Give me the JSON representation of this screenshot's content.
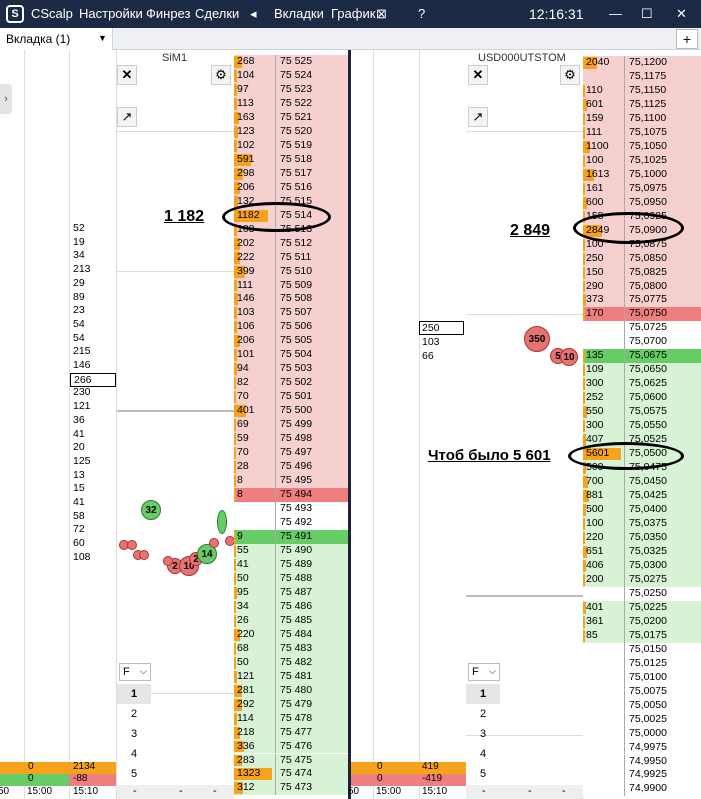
{
  "titlebar": {
    "app_name": "CScalp",
    "menu": [
      "Настройки",
      "Финрез",
      "Сделки"
    ],
    "arrow": "◂",
    "menu2": [
      "Вкладки",
      "График"
    ],
    "close_small": "⊠",
    "help": "?",
    "clock": "12:16:31",
    "minimize": "—",
    "maximize": "☐",
    "close": "✕"
  },
  "tabs": {
    "active_label": "Вкладка (1)",
    "dropdown_arrow": "▼",
    "add_label": "+"
  },
  "left_strip": {
    "collapse_arrow": "›"
  },
  "left_column": {
    "values": [
      "52",
      "19",
      "34",
      "213",
      "29",
      "89",
      "23",
      "54",
      "54",
      "215",
      "146",
      "266",
      "230",
      "121",
      "36",
      "41",
      "20",
      "125",
      "13",
      "15",
      "41",
      "58",
      "72",
      "60",
      "108"
    ],
    "boxed_value": "266",
    "bottom": {
      "orange_left": "0",
      "orange_right": "2134",
      "green_left": "0",
      "green_right": "-88",
      "time_a": "15:00",
      "time_b": "15:10",
      "time_0": "50"
    }
  },
  "sim": {
    "title": "SiM1",
    "annotation": "1 182",
    "asks": [
      [
        "268",
        "75 525"
      ],
      [
        "104",
        "75 524"
      ],
      [
        "97",
        "75 523"
      ],
      [
        "113",
        "75 522"
      ],
      [
        "163",
        "75 521"
      ],
      [
        "123",
        "75 520"
      ],
      [
        "102",
        "75 519"
      ],
      [
        "591",
        "75 518"
      ],
      [
        "298",
        "75 517"
      ],
      [
        "206",
        "75 516"
      ],
      [
        "132",
        "75 515"
      ],
      [
        "1182",
        "75 514"
      ],
      [
        "108",
        "75 513"
      ],
      [
        "202",
        "75 512"
      ],
      [
        "222",
        "75 511"
      ],
      [
        "399",
        "75 510"
      ],
      [
        "111",
        "75 509"
      ],
      [
        "146",
        "75 508"
      ],
      [
        "103",
        "75 507"
      ],
      [
        "106",
        "75 506"
      ],
      [
        "206",
        "75 505"
      ],
      [
        "101",
        "75 504"
      ],
      [
        "94",
        "75 503"
      ],
      [
        "82",
        "75 502"
      ],
      [
        "70",
        "75 501"
      ],
      [
        "401",
        "75 500"
      ],
      [
        "69",
        "75 499"
      ],
      [
        "59",
        "75 498"
      ],
      [
        "70",
        "75 497"
      ],
      [
        "28",
        "75 496"
      ],
      [
        "8",
        "75 495"
      ],
      [
        "8",
        "75 494"
      ]
    ],
    "mid": [
      [
        "",
        "75 493"
      ],
      [
        "",
        "75 492"
      ]
    ],
    "bids": [
      [
        "9",
        "75 491"
      ],
      [
        "55",
        "75 490"
      ],
      [
        "41",
        "75 489"
      ],
      [
        "50",
        "75 488"
      ],
      [
        "95",
        "75 487"
      ],
      [
        "34",
        "75 486"
      ],
      [
        "26",
        "75 485"
      ],
      [
        "220",
        "75 484"
      ],
      [
        "68",
        "75 483"
      ],
      [
        "50",
        "75 482"
      ],
      [
        "121",
        "75 481"
      ],
      [
        "281",
        "75 480"
      ],
      [
        "292",
        "75 479"
      ],
      [
        "114",
        "75 478"
      ],
      [
        "218",
        "75 477"
      ],
      [
        "336",
        "75 476"
      ],
      [
        "283",
        "75 475"
      ],
      [
        "1323",
        "75 474"
      ],
      [
        "312",
        "75 473"
      ]
    ],
    "bubbles": [
      {
        "label": "32",
        "color": "green"
      },
      {
        "label": "2",
        "color": "red"
      },
      {
        "label": "10",
        "color": "red"
      },
      {
        "label": "2",
        "color": "red"
      },
      {
        "label": "14",
        "color": "green"
      }
    ],
    "filter": "F",
    "slots": [
      "1",
      "2",
      "3",
      "4",
      "5"
    ],
    "dashes": [
      "-",
      "-",
      "-"
    ]
  },
  "usd": {
    "title": "USD000UTSTOM",
    "annotation": "2 849",
    "annotation2": "Чтоб было 5 601",
    "left_values": [
      "250",
      "103",
      "66"
    ],
    "left_bottom": {
      "orange_left": "0",
      "orange_right": "419",
      "red_left": "0",
      "red_right": "-419",
      "time_a": "15:00",
      "time_b": "15:10",
      "time_0": "50"
    },
    "asks": [
      [
        "2040",
        "75,1200"
      ],
      [
        "",
        "75,1175"
      ],
      [
        "110",
        "75,1150"
      ],
      [
        "601",
        "75,1125"
      ],
      [
        "159",
        "75,1100"
      ],
      [
        "111",
        "75,1075"
      ],
      [
        "1100",
        "75,1050"
      ],
      [
        "100",
        "75,1025"
      ],
      [
        "1613",
        "75,1000"
      ],
      [
        "161",
        "75,0975"
      ],
      [
        "600",
        "75,0950"
      ],
      [
        "158",
        "75,0925"
      ],
      [
        "2849",
        "75,0900"
      ],
      [
        "100",
        "75,0875"
      ],
      [
        "250",
        "75,0850"
      ],
      [
        "150",
        "75,0825"
      ],
      [
        "290",
        "75,0800"
      ],
      [
        "373",
        "75,0775"
      ],
      [
        "170",
        "75,0750"
      ]
    ],
    "mid": [
      [
        "",
        "75,0725"
      ],
      [
        "",
        "75,0700"
      ]
    ],
    "bids": [
      [
        "135",
        "75,0675"
      ],
      [
        "109",
        "75,0650"
      ],
      [
        "300",
        "75,0625"
      ],
      [
        "252",
        "75,0600"
      ],
      [
        "550",
        "75,0575"
      ],
      [
        "300",
        "75,0550"
      ],
      [
        "407",
        "75,0525"
      ],
      [
        "5601",
        "75,0500"
      ],
      [
        "500",
        "75,0475"
      ],
      [
        "700",
        "75,0450"
      ],
      [
        "881",
        "75,0425"
      ],
      [
        "500",
        "75,0400"
      ],
      [
        "100",
        "75,0375"
      ],
      [
        "220",
        "75,0350"
      ],
      [
        "651",
        "75,0325"
      ],
      [
        "406",
        "75,0300"
      ],
      [
        "200",
        "75,0275"
      ],
      [
        "",
        "75,0250"
      ],
      [
        "401",
        "75,0225"
      ],
      [
        "361",
        "75,0200"
      ],
      [
        "85",
        "75,0175"
      ],
      [
        "",
        "75,0150"
      ],
      [
        "",
        "75,0125"
      ],
      [
        "",
        "75,0100"
      ],
      [
        "",
        "75,0075"
      ],
      [
        "",
        "75,0050"
      ],
      [
        "",
        "75,0025"
      ],
      [
        "",
        "75,0000"
      ],
      [
        "",
        "74,9975"
      ],
      [
        "",
        "74,9950"
      ],
      [
        "",
        "74,9925"
      ],
      [
        "",
        "74,9900"
      ]
    ],
    "bubbles": [
      {
        "label": "350",
        "color": "red"
      },
      {
        "label": "5",
        "color": "red"
      },
      {
        "label": "10",
        "color": "red"
      }
    ],
    "filter": "F",
    "slots": [
      "1",
      "2",
      "3",
      "4",
      "5"
    ],
    "dashes": [
      "-",
      "-",
      "-"
    ]
  },
  "colors": {
    "ask": "#f6cfcf",
    "ask_best": "#ef7f7f",
    "bid": "#d7f2d4",
    "bid_best": "#66cc66",
    "volume_orange": "#f7a21b",
    "title_bg": "#1d2a46"
  }
}
